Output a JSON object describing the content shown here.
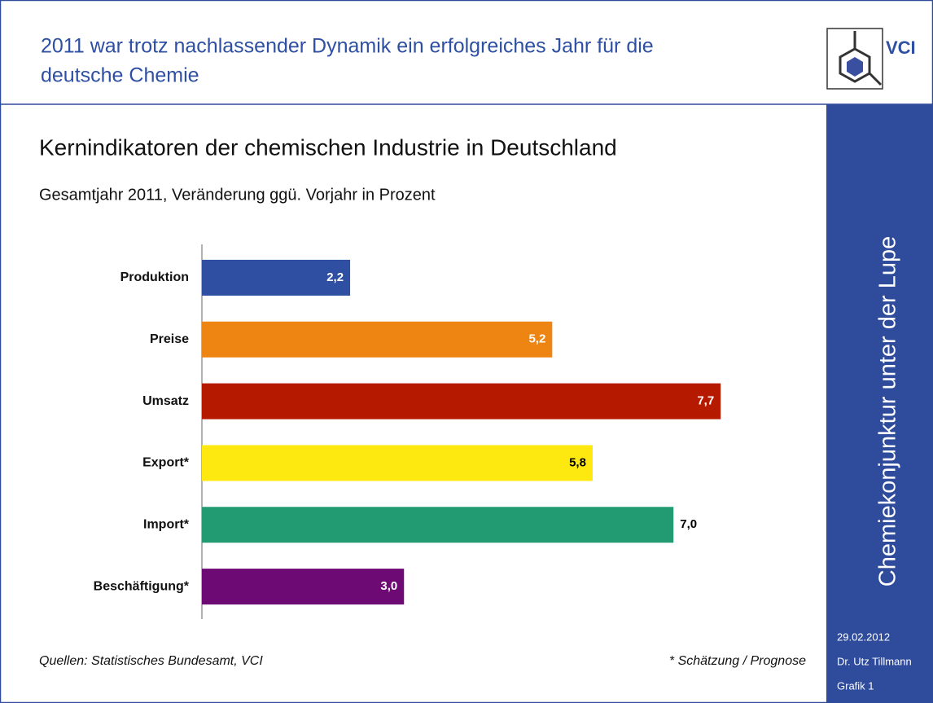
{
  "header": {
    "title_lines": [
      "2011 war trotz nachlassender Dynamik ein erfolgreiches Jahr für die",
      "deutsche Chemie"
    ],
    "logo": "VCI"
  },
  "chart_data": {
    "type": "hbar",
    "title": "Kernindikatoren der chemischen Industrie in Deutschland",
    "subtitle": "Gesamtjahr 2011, Veränderung ggü. Vorjahr in Prozent",
    "categories": [
      "Produktion",
      "Preise",
      "Umsatz",
      "Export*",
      "Import*",
      "Beschäftigung*"
    ],
    "values": [
      2.2,
      5.2,
      7.7,
      5.8,
      7.0,
      3.0
    ],
    "value_labels": [
      "2,2",
      "5,2",
      "7,7",
      "5,8",
      "7,0",
      "3,0"
    ],
    "colors": [
      "#2e4fa2",
      "#ee8412",
      "#b51a00",
      "#fde910",
      "#229b72",
      "#6e0a74"
    ],
    "label_colors": [
      "#ffffff",
      "#ffffff",
      "#ffffff",
      "#000000",
      "#000000",
      "#ffffff"
    ],
    "label_positions": [
      "inside",
      "inside",
      "inside",
      "inside",
      "outside",
      "inside"
    ],
    "xlim": [
      0,
      8
    ]
  },
  "footer": {
    "source": "Quellen: Statistisches Bundesamt, VCI",
    "note": "* Schätzung / Prognose"
  },
  "sidebar": {
    "title": "Chemiekonjunktur unter der Lupe",
    "date": "29.02.2012",
    "author": "Dr. Utz Tillmann",
    "figure": "Grafik 1"
  }
}
